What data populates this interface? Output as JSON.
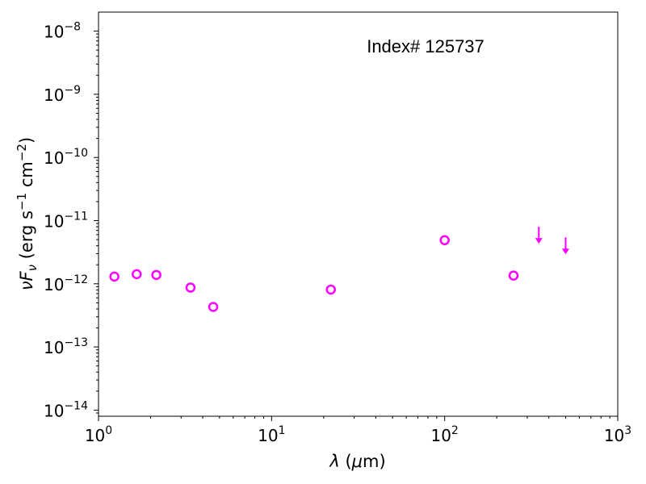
{
  "chart_data": {
    "type": "scatter",
    "title": "",
    "annotation": "Index# 125737",
    "xlabel": "λ (μm)",
    "ylabel": "νF_ν (erg s^-1 cm^-2)",
    "x_scale": "log",
    "y_scale": "log",
    "xlim": [
      1,
      1000
    ],
    "ylim": [
      8e-15,
      2e-08
    ],
    "x_ticks": [
      {
        "base": "10",
        "exp": "0",
        "value": 1
      },
      {
        "base": "10",
        "exp": "1",
        "value": 10
      },
      {
        "base": "10",
        "exp": "2",
        "value": 100
      },
      {
        "base": "10",
        "exp": "3",
        "value": 1000
      }
    ],
    "y_ticks": [
      {
        "base": "10",
        "exp": "−14",
        "value": 1e-14
      },
      {
        "base": "10",
        "exp": "−13",
        "value": 1e-13
      },
      {
        "base": "10",
        "exp": "−12",
        "value": 1e-12
      },
      {
        "base": "10",
        "exp": "−11",
        "value": 1e-11
      },
      {
        "base": "10",
        "exp": "−10",
        "value": 1e-10
      },
      {
        "base": "10",
        "exp": "−9",
        "value": 1e-09
      },
      {
        "base": "10",
        "exp": "−8",
        "value": 1e-08
      }
    ],
    "grid": false,
    "color": "#ff00ff",
    "series": [
      {
        "marker": "open-circle",
        "points": [
          {
            "x": 1.235,
            "y": 1.3e-12
          },
          {
            "x": 1.662,
            "y": 1.42e-12
          },
          {
            "x": 2.159,
            "y": 1.38e-12
          },
          {
            "x": 3.4,
            "y": 8.7e-13
          },
          {
            "x": 4.6,
            "y": 4.3e-13
          },
          {
            "x": 22,
            "y": 8.1e-13
          },
          {
            "x": 100,
            "y": 4.9e-12
          },
          {
            "x": 250,
            "y": 1.35e-12
          }
        ]
      },
      {
        "marker": "upper-limit-arrow",
        "points": [
          {
            "x": 350,
            "y": 5.3e-12
          },
          {
            "x": 500,
            "y": 3.6e-12
          }
        ]
      }
    ]
  }
}
